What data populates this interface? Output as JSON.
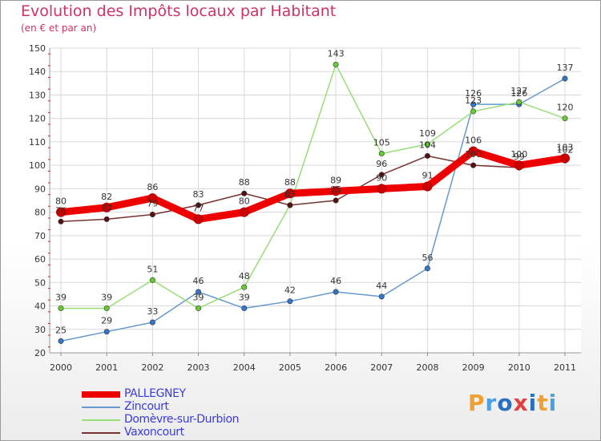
{
  "title": "Evolution des Impôts locaux par Habitant",
  "subtitle": "(en € et par an)",
  "logo": {
    "text": "Proxiti",
    "colors": [
      "#f0a030",
      "#4aa0e0",
      "#2a70c0",
      "#e04040",
      "#2a70c0",
      "#f0a030",
      "#4aa0e0"
    ]
  },
  "chart_data": {
    "type": "line",
    "title": "Evolution des Impôts locaux par Habitant",
    "subtitle": "(en € et par an)",
    "xlabel": "",
    "ylabel": "",
    "categories": [
      "2000",
      "2001",
      "2002",
      "2003",
      "2004",
      "2005",
      "2006",
      "2007",
      "2008",
      "2009",
      "2010",
      "2011"
    ],
    "ylim": [
      20,
      150
    ],
    "yticks": [
      20,
      30,
      40,
      50,
      60,
      70,
      80,
      90,
      100,
      110,
      120,
      130,
      140,
      150
    ],
    "grid": true,
    "legend_position": "bottom-left",
    "series": [
      {
        "name": "PALLEGNEY",
        "color": "#ee0000",
        "marker": "#cc0000",
        "values": [
          80,
          82,
          86,
          77,
          80,
          88,
          89,
          90,
          91,
          106,
          100,
          103
        ],
        "labels": [
          "80",
          "82",
          "86",
          "77",
          "80",
          "88",
          "89",
          "90",
          "91",
          "106",
          "100",
          "103"
        ]
      },
      {
        "name": "Zincourt",
        "color": "#6699cc",
        "marker": "#3377cc",
        "values": [
          25,
          29,
          33,
          46,
          39,
          42,
          46,
          44,
          56,
          126,
          126,
          137
        ],
        "labels": [
          "25",
          "29",
          "33",
          "46",
          "39",
          "42",
          "46",
          "44",
          "56",
          "126",
          "126",
          "137"
        ]
      },
      {
        "name": "Domèvre-sur-Durbion",
        "color": "#99dd77",
        "marker": "#66cc33",
        "values": [
          39,
          39,
          51,
          39,
          48,
          83,
          143,
          105,
          109,
          123,
          127,
          120
        ],
        "labels": [
          "39",
          "39",
          "51",
          "39",
          "48",
          "",
          "143",
          "105",
          "109",
          "123",
          "127",
          "120"
        ]
      },
      {
        "name": "Vaxoncourt",
        "color": "#773333",
        "marker": "#551111",
        "values": [
          76,
          77,
          79,
          83,
          88,
          83,
          85,
          96,
          104,
          100,
          99,
          102
        ],
        "labels": [
          "76",
          "77",
          "79",
          "83",
          "88",
          "83",
          "85",
          "96",
          "104",
          "100",
          "99",
          "102"
        ]
      }
    ]
  }
}
